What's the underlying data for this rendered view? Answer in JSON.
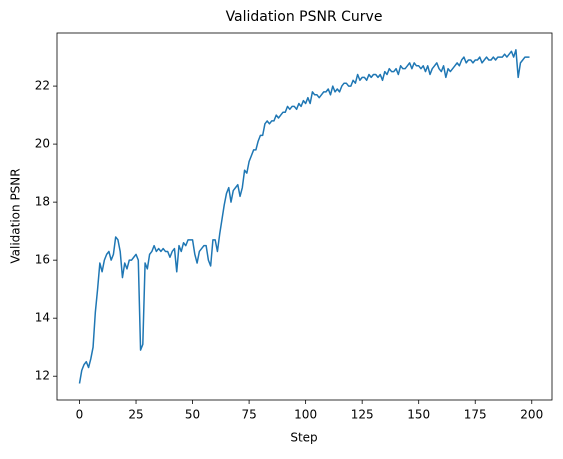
{
  "chart_data": {
    "type": "line",
    "title": "Validation PSNR Curve",
    "xlabel": "Step",
    "ylabel": "Validation PSNR",
    "color": "#1f77b4",
    "x": [
      0,
      1,
      2,
      3,
      4,
      5,
      6,
      7,
      8,
      9,
      10,
      11,
      12,
      13,
      14,
      15,
      16,
      17,
      18,
      19,
      20,
      21,
      22,
      23,
      24,
      25,
      26,
      27,
      28,
      29,
      30,
      31,
      32,
      33,
      34,
      35,
      36,
      37,
      38,
      39,
      40,
      41,
      42,
      43,
      44,
      45,
      46,
      47,
      48,
      49,
      50,
      51,
      52,
      53,
      54,
      55,
      56,
      57,
      58,
      59,
      60,
      61,
      62,
      63,
      64,
      65,
      66,
      67,
      68,
      69,
      70,
      71,
      72,
      73,
      74,
      75,
      76,
      77,
      78,
      79,
      80,
      81,
      82,
      83,
      84,
      85,
      86,
      87,
      88,
      89,
      90,
      91,
      92,
      93,
      94,
      95,
      96,
      97,
      98,
      99,
      100,
      101,
      102,
      103,
      104,
      105,
      106,
      107,
      108,
      109,
      110,
      111,
      112,
      113,
      114,
      115,
      116,
      117,
      118,
      119,
      120,
      121,
      122,
      123,
      124,
      125,
      126,
      127,
      128,
      129,
      130,
      131,
      132,
      133,
      134,
      135,
      136,
      137,
      138,
      139,
      140,
      141,
      142,
      143,
      144,
      145,
      146,
      147,
      148,
      149,
      150,
      151,
      152,
      153,
      154,
      155,
      156,
      157,
      158,
      159,
      160,
      161,
      162,
      163,
      164,
      165,
      166,
      167,
      168,
      169,
      170,
      171,
      172,
      173,
      174,
      175,
      176,
      177,
      178,
      179,
      180,
      181,
      182,
      183,
      184,
      185,
      186,
      187,
      188,
      189,
      190,
      191,
      192,
      193,
      194,
      195,
      196,
      197,
      198,
      199
    ],
    "values": [
      11.75,
      12.2,
      12.4,
      12.5,
      12.3,
      12.6,
      13.0,
      14.2,
      15.0,
      15.9,
      15.6,
      16.0,
      16.2,
      16.3,
      16.0,
      16.2,
      16.8,
      16.7,
      16.3,
      15.4,
      15.9,
      15.7,
      16.0,
      16.0,
      16.1,
      16.2,
      16.0,
      12.9,
      13.1,
      15.9,
      15.7,
      16.2,
      16.3,
      16.5,
      16.3,
      16.4,
      16.3,
      16.4,
      16.3,
      16.3,
      16.1,
      16.3,
      16.4,
      15.6,
      16.5,
      16.3,
      16.6,
      16.5,
      16.7,
      16.7,
      16.7,
      16.2,
      15.9,
      16.3,
      16.4,
      16.5,
      16.5,
      16.0,
      15.8,
      16.7,
      16.7,
      16.3,
      16.9,
      17.4,
      17.9,
      18.3,
      18.5,
      18.0,
      18.4,
      18.5,
      18.6,
      18.2,
      18.5,
      19.1,
      19.0,
      19.4,
      19.6,
      19.8,
      19.8,
      20.1,
      20.3,
      20.3,
      20.7,
      20.8,
      20.7,
      20.8,
      20.8,
      21.0,
      20.9,
      21.0,
      21.1,
      21.1,
      21.3,
      21.2,
      21.3,
      21.3,
      21.2,
      21.4,
      21.3,
      21.5,
      21.4,
      21.6,
      21.4,
      21.8,
      21.7,
      21.7,
      21.6,
      21.7,
      21.8,
      21.8,
      21.9,
      21.7,
      22.0,
      21.8,
      21.9,
      21.8,
      22.0,
      22.1,
      22.1,
      22.0,
      22.0,
      22.2,
      22.1,
      22.4,
      22.2,
      22.3,
      22.3,
      22.2,
      22.4,
      22.3,
      22.4,
      22.4,
      22.3,
      22.4,
      22.2,
      22.5,
      22.4,
      22.6,
      22.5,
      22.5,
      22.6,
      22.4,
      22.7,
      22.6,
      22.6,
      22.7,
      22.8,
      22.6,
      22.8,
      22.7,
      22.7,
      22.6,
      22.7,
      22.5,
      22.7,
      22.4,
      22.6,
      22.7,
      22.8,
      22.6,
      22.5,
      22.7,
      22.3,
      22.6,
      22.5,
      22.6,
      22.7,
      22.8,
      22.7,
      22.9,
      23.0,
      22.8,
      22.9,
      22.9,
      22.8,
      22.9,
      22.9,
      23.0,
      22.8,
      22.9,
      23.0,
      22.9,
      22.9,
      23.0,
      22.9,
      23.0,
      23.0,
      23.0,
      23.1,
      23.0,
      23.1,
      23.2,
      23.0,
      23.25,
      22.3,
      22.8,
      22.9,
      23.0,
      23.0,
      23.0
    ],
    "xlim": [
      -9.95,
      208.95
    ],
    "xticks": [
      0,
      25,
      50,
      75,
      100,
      125,
      150,
      175,
      200
    ],
    "ylim": [
      11.18,
      23.83
    ],
    "yticks": [
      12,
      14,
      16,
      18,
      20,
      22
    ]
  }
}
